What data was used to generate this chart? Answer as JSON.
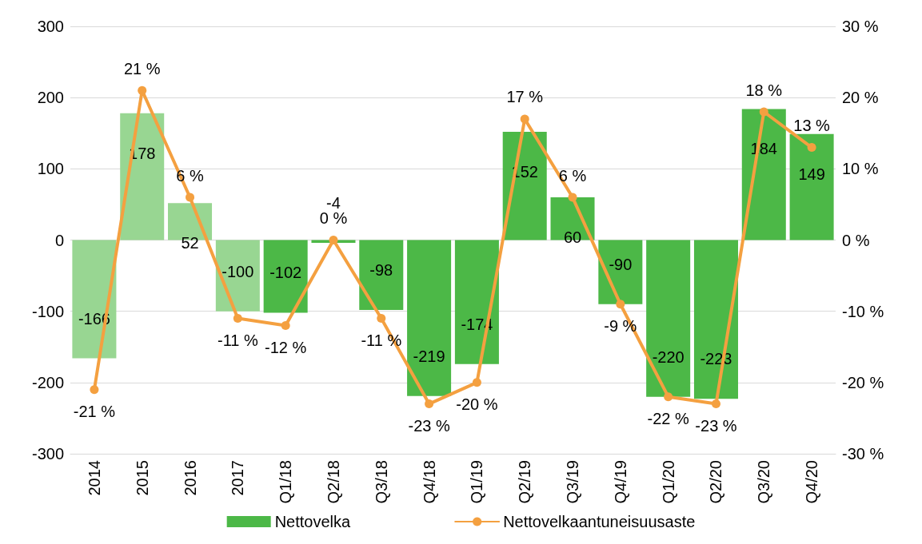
{
  "chart_data": {
    "type": "bar",
    "categories": [
      "2014",
      "2015",
      "2016",
      "2017",
      "Q1/18",
      "Q2/18",
      "Q3/18",
      "Q4/18",
      "Q1/19",
      "Q2/19",
      "Q3/19",
      "Q4/19",
      "Q1/20",
      "Q2/20",
      "Q3/20",
      "Q4/20"
    ],
    "series": [
      {
        "name": "Nettovelka",
        "color": "#4cb847",
        "colors": [
          "#98d692",
          "#98d692",
          "#98d692",
          "#98d692",
          "#4cb847",
          "#4cb847",
          "#4cb847",
          "#4cb847",
          "#4cb847",
          "#4cb847",
          "#4cb847",
          "#4cb847",
          "#4cb847",
          "#4cb847",
          "#4cb847",
          "#4cb847"
        ],
        "values": [
          -166,
          178,
          52,
          -100,
          -102,
          -4,
          -98,
          -219,
          -174,
          152,
          60,
          -90,
          -220,
          -223,
          184,
          149
        ],
        "value_labels": [
          "-166",
          "178",
          "52",
          "-100",
          "-102",
          "-4",
          "-98",
          "-219",
          "-174",
          "152",
          "60",
          "-90",
          "-220",
          "-223",
          "184",
          "149"
        ]
      },
      {
        "name": "Nettovelkaantuneisuusaste",
        "type": "line",
        "axis": "y2",
        "color": "#f4a040",
        "values": [
          -21,
          21,
          6,
          -11,
          -12,
          0,
          -11,
          -23,
          -20,
          17,
          6,
          -9,
          -22,
          -23,
          18,
          13
        ],
        "value_labels": [
          "-21 %",
          "21 %",
          "6 %",
          "-11 %",
          "-12 %",
          "0 %",
          "-11 %",
          "-23 %",
          "-20 %",
          "17 %",
          "6 %",
          "-9 %",
          "-22 %",
          "-23 %",
          "18 %",
          "13 %"
        ]
      }
    ],
    "ylim": [
      -300,
      300
    ],
    "yticks": [
      -300,
      -200,
      -100,
      0,
      100,
      200,
      300
    ],
    "y2lim": [
      -30,
      30
    ],
    "y2ticks": [
      {
        "value": -30,
        "label": "-30 %"
      },
      {
        "value": -20,
        "label": "-20 %"
      },
      {
        "value": -10,
        "label": "-10 %"
      },
      {
        "value": 0,
        "label": "0 %"
      },
      {
        "value": 10,
        "label": "10 %"
      },
      {
        "value": 20,
        "label": "20 %"
      },
      {
        "value": 30,
        "label": "30 %"
      }
    ],
    "grid": "y",
    "legend": "bottom",
    "marker": "circle",
    "line_style": "solid"
  }
}
